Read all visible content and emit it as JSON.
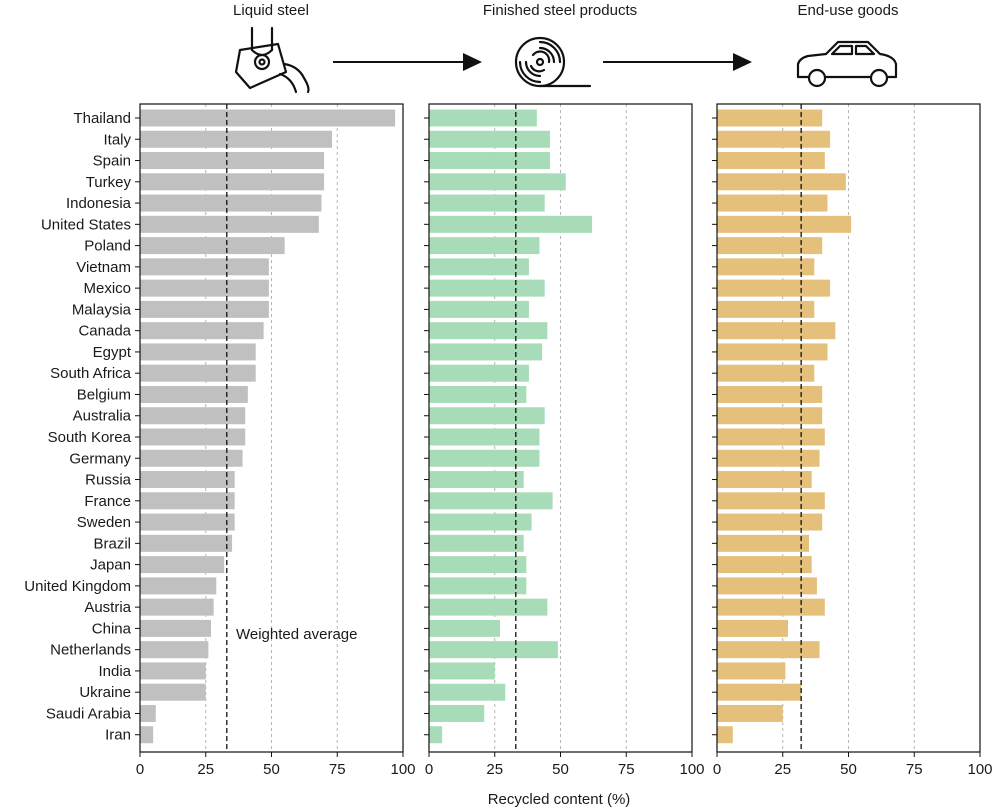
{
  "chart_data": {
    "type": "bar",
    "orientation": "horizontal",
    "categories": [
      "Thailand",
      "Italy",
      "Spain",
      "Turkey",
      "Indonesia",
      "United States",
      "Poland",
      "Vietnam",
      "Mexico",
      "Malaysia",
      "Canada",
      "Egypt",
      "South Africa",
      "Belgium",
      "Australia",
      "South Korea",
      "Germany",
      "Russia",
      "France",
      "Sweden",
      "Brazil",
      "Japan",
      "United Kingdom",
      "Austria",
      "China",
      "Netherlands",
      "India",
      "Ukraine",
      "Saudi Arabia",
      "Iran"
    ],
    "xlabel": "Recycled content (%)",
    "xlim": [
      0,
      100
    ],
    "xticks": [
      0,
      25,
      50,
      75,
      100
    ],
    "grid": "vertical dotted",
    "weighted_average_label": "Weighted average",
    "panels": [
      {
        "name": "Liquid steel",
        "icon": "ladle-icon",
        "color": "#c0c0c0",
        "weighted_average": 33,
        "values": [
          97,
          73,
          70,
          70,
          69,
          68,
          55,
          49,
          49,
          49,
          47,
          44,
          44,
          41,
          40,
          40,
          39,
          36,
          36,
          36,
          35,
          32,
          29,
          28,
          27,
          26,
          25,
          25,
          6,
          5
        ]
      },
      {
        "name": "Finished steel products",
        "icon": "steel-coil-icon",
        "color": "#a8dcb8",
        "weighted_average": 33,
        "values": [
          41,
          46,
          46,
          52,
          44,
          62,
          42,
          38,
          44,
          38,
          45,
          43,
          38,
          37,
          44,
          42,
          42,
          36,
          47,
          39,
          36,
          37,
          37,
          45,
          27,
          49,
          25,
          29,
          21,
          5
        ]
      },
      {
        "name": "End-use goods",
        "icon": "car-icon",
        "color": "#e5c07b",
        "weighted_average": 32,
        "values": [
          40,
          43,
          41,
          49,
          42,
          51,
          40,
          37,
          43,
          37,
          45,
          42,
          37,
          40,
          40,
          41,
          39,
          36,
          41,
          40,
          35,
          36,
          38,
          41,
          27,
          39,
          26,
          32,
          25,
          6
        ]
      }
    ]
  }
}
